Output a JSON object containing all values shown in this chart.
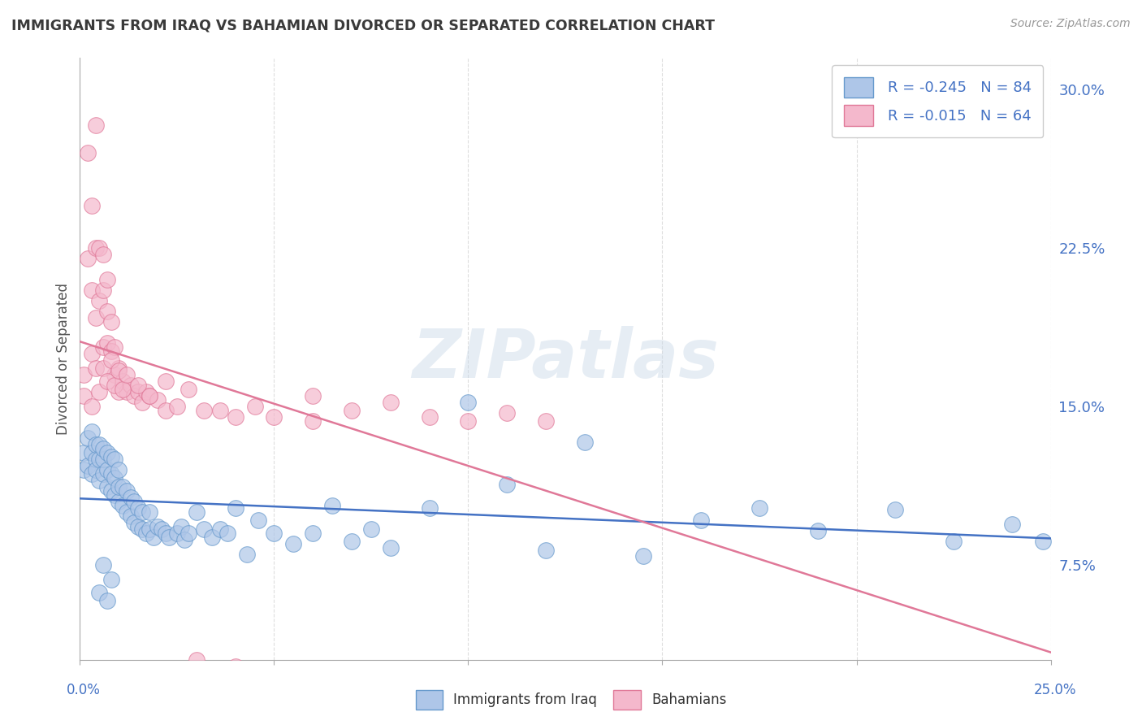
{
  "title": "IMMIGRANTS FROM IRAQ VS BAHAMIAN DIVORCED OR SEPARATED CORRELATION CHART",
  "source": "Source: ZipAtlas.com",
  "watermark": "ZIPatlas",
  "ylabel": "Divorced or Separated",
  "series1_name": "Immigrants from Iraq",
  "series1_face_color": "#aec6e8",
  "series1_edge_color": "#6699cc",
  "series1_line_color": "#4472c4",
  "series1_R": -0.245,
  "series1_N": 84,
  "series2_name": "Bahamians",
  "series2_face_color": "#f4b8cc",
  "series2_edge_color": "#e07898",
  "series2_line_color": "#e07898",
  "series2_R": -0.015,
  "series2_N": 64,
  "xlim": [
    0.0,
    0.25
  ],
  "ylim": [
    0.03,
    0.315
  ],
  "x_ticks": [
    0.0,
    0.05,
    0.1,
    0.15,
    0.2,
    0.25
  ],
  "y_ticks": [
    0.075,
    0.15,
    0.225,
    0.3
  ],
  "y_tick_labels": [
    "7.5%",
    "15.0%",
    "22.5%",
    "30.0%"
  ],
  "background_color": "#ffffff",
  "grid_color": "#d0d0d0",
  "title_color": "#3a3a3a",
  "axis_label_color": "#4472c4",
  "legend_text_color": "#4472c4",
  "series1_x": [
    0.001,
    0.001,
    0.002,
    0.002,
    0.003,
    0.003,
    0.003,
    0.004,
    0.004,
    0.004,
    0.005,
    0.005,
    0.005,
    0.006,
    0.006,
    0.006,
    0.007,
    0.007,
    0.007,
    0.008,
    0.008,
    0.008,
    0.009,
    0.009,
    0.009,
    0.01,
    0.01,
    0.01,
    0.011,
    0.011,
    0.012,
    0.012,
    0.013,
    0.013,
    0.014,
    0.014,
    0.015,
    0.015,
    0.016,
    0.016,
    0.017,
    0.018,
    0.018,
    0.019,
    0.02,
    0.021,
    0.022,
    0.023,
    0.025,
    0.026,
    0.027,
    0.028,
    0.03,
    0.032,
    0.034,
    0.036,
    0.038,
    0.04,
    0.043,
    0.046,
    0.05,
    0.055,
    0.06,
    0.065,
    0.07,
    0.075,
    0.08,
    0.09,
    0.1,
    0.11,
    0.12,
    0.13,
    0.145,
    0.16,
    0.175,
    0.19,
    0.21,
    0.225,
    0.24,
    0.248,
    0.005,
    0.006,
    0.007,
    0.008
  ],
  "series1_y": [
    0.128,
    0.12,
    0.135,
    0.122,
    0.118,
    0.128,
    0.138,
    0.125,
    0.132,
    0.12,
    0.115,
    0.125,
    0.132,
    0.118,
    0.125,
    0.13,
    0.112,
    0.12,
    0.128,
    0.11,
    0.118,
    0.126,
    0.108,
    0.116,
    0.125,
    0.105,
    0.112,
    0.12,
    0.103,
    0.112,
    0.1,
    0.11,
    0.098,
    0.107,
    0.095,
    0.105,
    0.093,
    0.102,
    0.092,
    0.1,
    0.09,
    0.092,
    0.1,
    0.088,
    0.093,
    0.092,
    0.09,
    0.088,
    0.09,
    0.093,
    0.087,
    0.09,
    0.1,
    0.092,
    0.088,
    0.092,
    0.09,
    0.102,
    0.08,
    0.096,
    0.09,
    0.085,
    0.09,
    0.103,
    0.086,
    0.092,
    0.083,
    0.102,
    0.152,
    0.113,
    0.082,
    0.133,
    0.079,
    0.096,
    0.102,
    0.091,
    0.101,
    0.086,
    0.094,
    0.086,
    0.062,
    0.075,
    0.058,
    0.068
  ],
  "series2_x": [
    0.001,
    0.001,
    0.002,
    0.002,
    0.003,
    0.003,
    0.003,
    0.004,
    0.004,
    0.004,
    0.005,
    0.005,
    0.006,
    0.006,
    0.006,
    0.007,
    0.007,
    0.007,
    0.008,
    0.008,
    0.009,
    0.009,
    0.01,
    0.01,
    0.011,
    0.012,
    0.013,
    0.014,
    0.015,
    0.016,
    0.017,
    0.018,
    0.02,
    0.022,
    0.025,
    0.028,
    0.032,
    0.036,
    0.04,
    0.045,
    0.05,
    0.06,
    0.07,
    0.08,
    0.09,
    0.1,
    0.11,
    0.12,
    0.003,
    0.004,
    0.005,
    0.006,
    0.007,
    0.008,
    0.009,
    0.01,
    0.011,
    0.012,
    0.015,
    0.018,
    0.022,
    0.03,
    0.04,
    0.06
  ],
  "series2_y": [
    0.165,
    0.155,
    0.27,
    0.22,
    0.245,
    0.205,
    0.175,
    0.283,
    0.225,
    0.192,
    0.225,
    0.2,
    0.178,
    0.205,
    0.222,
    0.18,
    0.195,
    0.21,
    0.176,
    0.19,
    0.165,
    0.178,
    0.157,
    0.168,
    0.162,
    0.157,
    0.16,
    0.155,
    0.157,
    0.152,
    0.157,
    0.155,
    0.153,
    0.148,
    0.15,
    0.158,
    0.148,
    0.148,
    0.145,
    0.15,
    0.145,
    0.143,
    0.148,
    0.152,
    0.145,
    0.143,
    0.147,
    0.143,
    0.15,
    0.168,
    0.157,
    0.168,
    0.162,
    0.172,
    0.16,
    0.167,
    0.158,
    0.165,
    0.16,
    0.155,
    0.162,
    0.03,
    0.027,
    0.155
  ]
}
